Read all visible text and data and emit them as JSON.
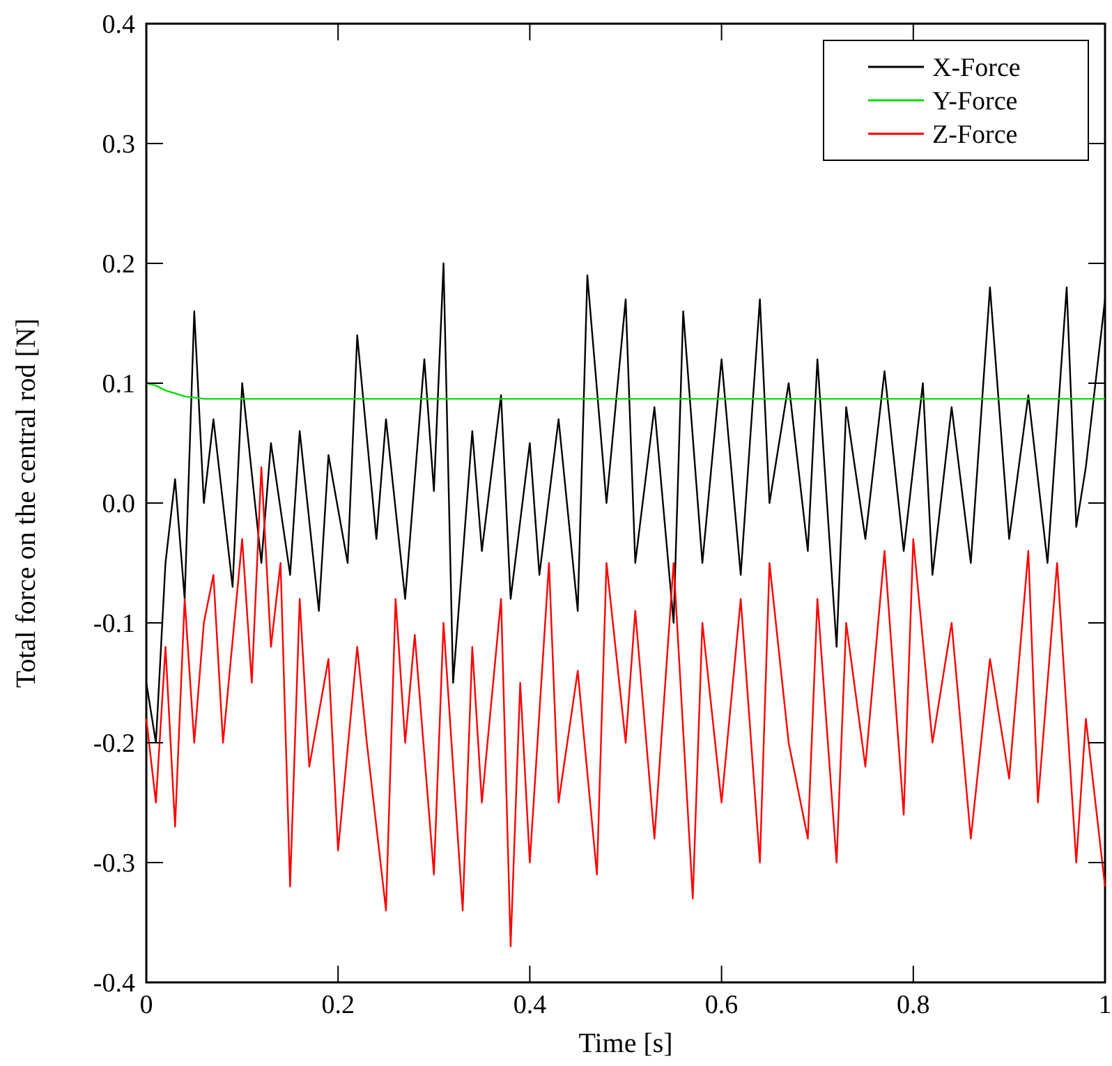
{
  "chart_data": {
    "type": "line",
    "xlabel": "Time [s]",
    "ylabel": "Total force on the central rod [N]",
    "xlim": [
      0,
      1
    ],
    "ylim": [
      -0.4,
      0.4
    ],
    "xticks": [
      0,
      0.2,
      0.4,
      0.6,
      0.8,
      1
    ],
    "yticks": [
      -0.4,
      -0.3,
      -0.2,
      -0.1,
      {
        "value": 0,
        "label": "0.0"
      },
      0.1,
      0.2,
      0.3,
      0.4
    ],
    "grid": false,
    "legend": "top right",
    "marker": "none",
    "line_style": "solid",
    "series": [
      {
        "name": "X-Force",
        "color": "#000000",
        "x": [
          0,
          0.01,
          0.02,
          0.03,
          0.04,
          0.05,
          0.06,
          0.07,
          0.09,
          0.1,
          0.12,
          0.13,
          0.15,
          0.16,
          0.18,
          0.19,
          0.21,
          0.22,
          0.24,
          0.25,
          0.27,
          0.29,
          0.3,
          0.31,
          0.32,
          0.34,
          0.35,
          0.37,
          0.38,
          0.4,
          0.41,
          0.43,
          0.45,
          0.46,
          0.48,
          0.5,
          0.51,
          0.53,
          0.55,
          0.56,
          0.58,
          0.6,
          0.62,
          0.64,
          0.65,
          0.67,
          0.69,
          0.7,
          0.72,
          0.73,
          0.75,
          0.77,
          0.79,
          0.81,
          0.82,
          0.84,
          0.86,
          0.88,
          0.9,
          0.92,
          0.94,
          0.96,
          0.97,
          0.98,
          1
        ],
        "values": [
          -0.15,
          -0.2,
          -0.05,
          0.02,
          -0.08,
          0.16,
          0.0,
          0.07,
          -0.07,
          0.1,
          -0.05,
          0.05,
          -0.06,
          0.06,
          -0.09,
          0.04,
          -0.05,
          0.14,
          -0.03,
          0.07,
          -0.08,
          0.12,
          0.01,
          0.2,
          -0.15,
          0.06,
          -0.04,
          0.09,
          -0.08,
          0.05,
          -0.06,
          0.07,
          -0.09,
          0.19,
          0.0,
          0.17,
          -0.05,
          0.08,
          -0.1,
          0.16,
          -0.05,
          0.12,
          -0.06,
          0.17,
          0.0,
          0.1,
          -0.04,
          0.12,
          -0.12,
          0.08,
          -0.03,
          0.11,
          -0.04,
          0.1,
          -0.06,
          0.08,
          -0.05,
          0.18,
          -0.03,
          0.09,
          -0.05,
          0.18,
          -0.02,
          0.03,
          0.17
        ]
      },
      {
        "name": "Y-Force",
        "color": "#00dd00",
        "x": [
          0,
          0.01,
          0.02,
          0.04,
          0.06,
          0.1,
          0.3,
          0.5,
          0.7,
          1
        ],
        "values": [
          0.1,
          0.098,
          0.094,
          0.089,
          0.087,
          0.087,
          0.087,
          0.087,
          0.087,
          0.087
        ]
      },
      {
        "name": "Z-Force",
        "color": "#ff0000",
        "x": [
          0,
          0.01,
          0.02,
          0.03,
          0.04,
          0.05,
          0.06,
          0.07,
          0.08,
          0.1,
          0.11,
          0.12,
          0.13,
          0.14,
          0.15,
          0.16,
          0.17,
          0.19,
          0.2,
          0.22,
          0.23,
          0.25,
          0.26,
          0.27,
          0.28,
          0.3,
          0.31,
          0.33,
          0.34,
          0.35,
          0.37,
          0.38,
          0.39,
          0.4,
          0.42,
          0.43,
          0.45,
          0.47,
          0.48,
          0.5,
          0.51,
          0.53,
          0.55,
          0.57,
          0.58,
          0.6,
          0.62,
          0.64,
          0.65,
          0.67,
          0.69,
          0.7,
          0.72,
          0.73,
          0.75,
          0.77,
          0.79,
          0.8,
          0.82,
          0.84,
          0.86,
          0.88,
          0.9,
          0.92,
          0.93,
          0.95,
          0.97,
          0.98,
          1
        ],
        "values": [
          -0.18,
          -0.25,
          -0.12,
          -0.27,
          -0.08,
          -0.2,
          -0.1,
          -0.06,
          -0.2,
          -0.03,
          -0.15,
          0.03,
          -0.12,
          -0.05,
          -0.32,
          -0.08,
          -0.22,
          -0.13,
          -0.29,
          -0.12,
          -0.2,
          -0.34,
          -0.08,
          -0.2,
          -0.11,
          -0.31,
          -0.1,
          -0.34,
          -0.12,
          -0.25,
          -0.08,
          -0.37,
          -0.15,
          -0.3,
          -0.05,
          -0.25,
          -0.14,
          -0.31,
          -0.05,
          -0.2,
          -0.09,
          -0.28,
          -0.05,
          -0.33,
          -0.1,
          -0.25,
          -0.08,
          -0.3,
          -0.05,
          -0.2,
          -0.28,
          -0.08,
          -0.3,
          -0.1,
          -0.22,
          -0.04,
          -0.26,
          -0.03,
          -0.2,
          -0.1,
          -0.28,
          -0.13,
          -0.23,
          -0.04,
          -0.25,
          -0.05,
          -0.3,
          -0.18,
          -0.32
        ]
      }
    ]
  }
}
